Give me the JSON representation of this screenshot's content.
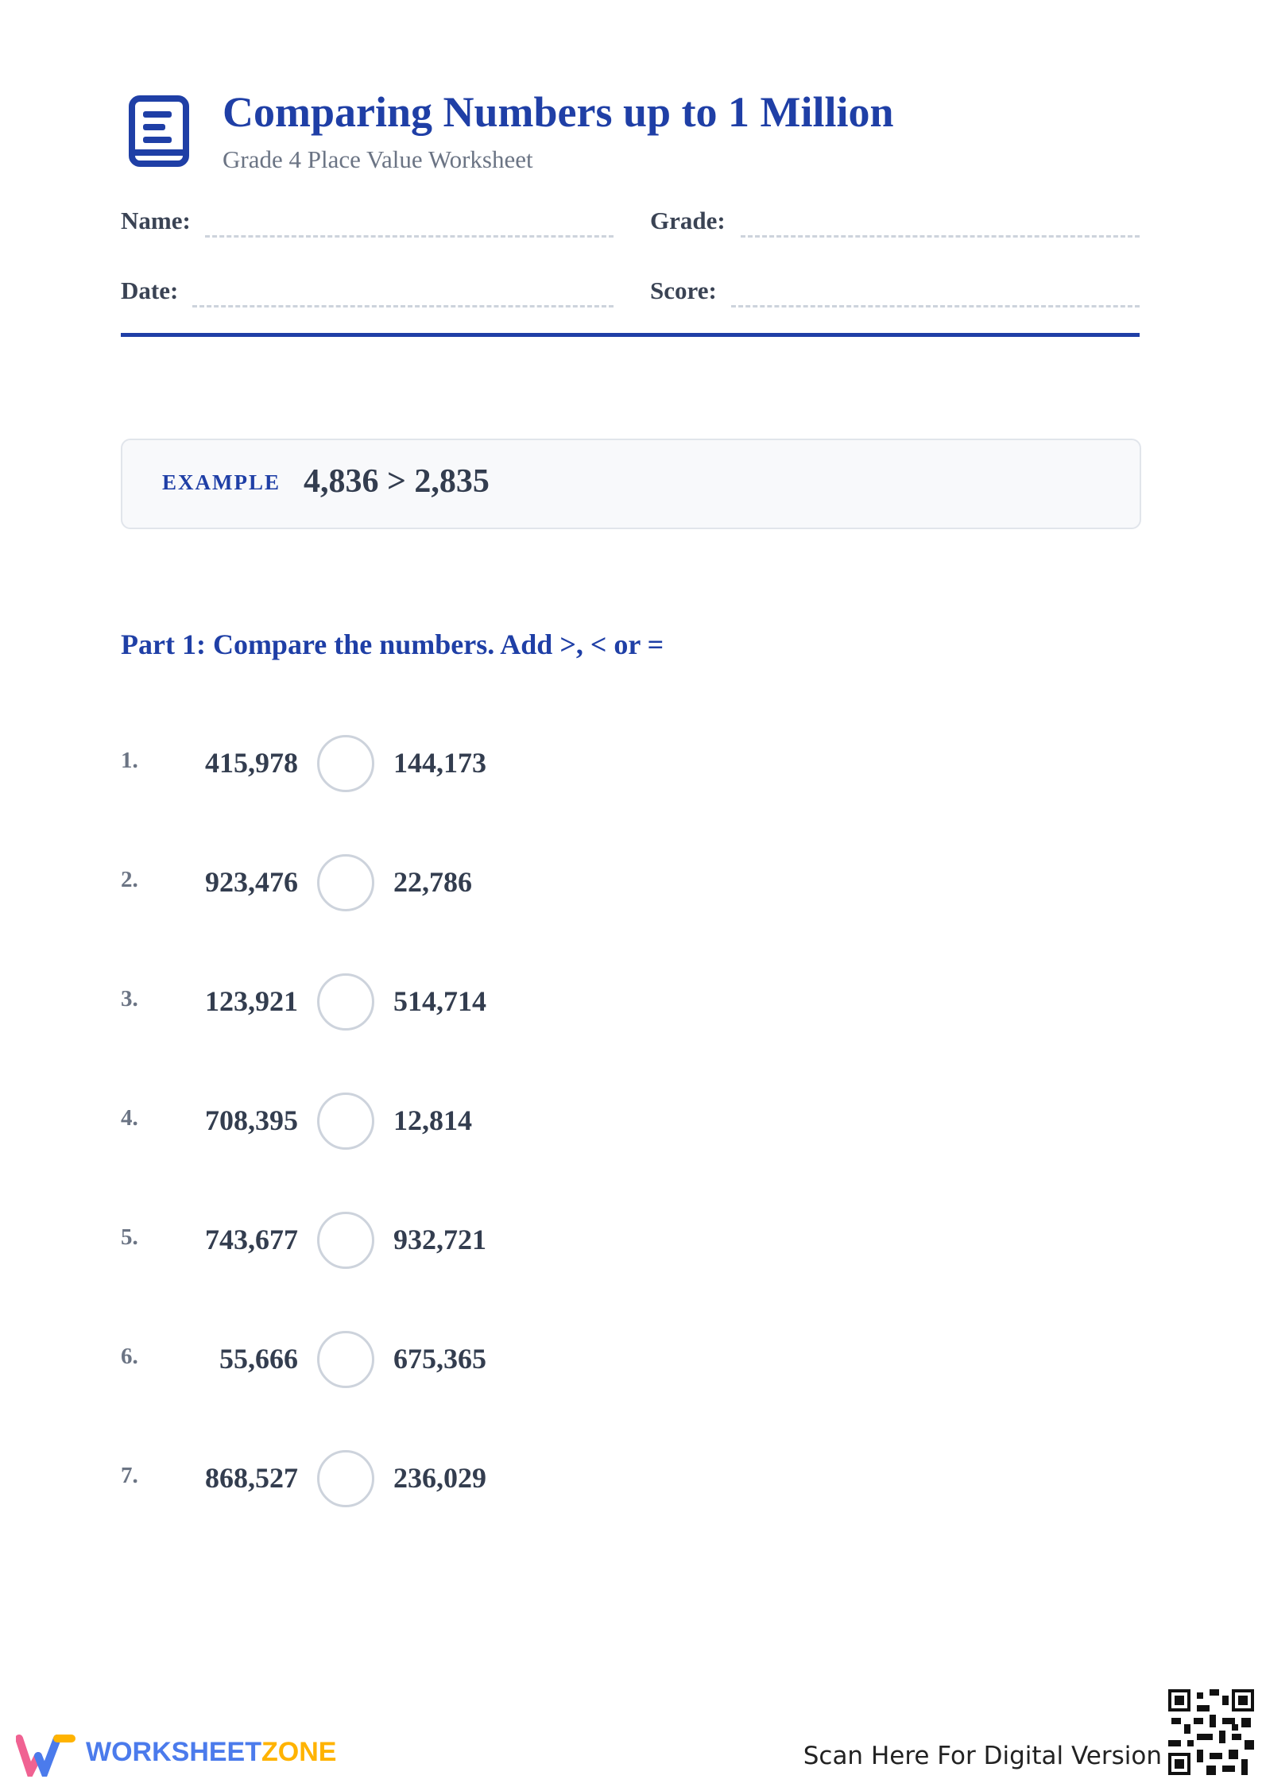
{
  "header": {
    "title": "Comparing Numbers up to 1 Million",
    "subtitle": "Grade 4 Place Value Worksheet"
  },
  "fields": [
    "Name:",
    "Grade:",
    "Date:",
    "Score:"
  ],
  "example": {
    "label": "EXAMPLE",
    "text": "4,836 > 2,835"
  },
  "part1": {
    "heading": "Part 1: Compare the numbers. Add >, < or =",
    "items": [
      {
        "number": "1.",
        "left": "415,978",
        "right": "144,173"
      },
      {
        "number": "2.",
        "left": "923,476",
        "right": "22,786"
      },
      {
        "number": "3.",
        "left": "123,921",
        "right": "514,714"
      },
      {
        "number": "4.",
        "left": "708,395",
        "right": "12,814"
      },
      {
        "number": "5.",
        "left": "743,677",
        "right": "932,721"
      },
      {
        "number": "6.",
        "left": "55,666",
        "right": "675,365"
      },
      {
        "number": "7.",
        "left": "868,527",
        "right": "236,029"
      }
    ]
  },
  "footer": {
    "brand_prefix": "WORKSHEET",
    "brand_suffix": "ZONE",
    "scan": "Scan Here For Digital Version"
  }
}
